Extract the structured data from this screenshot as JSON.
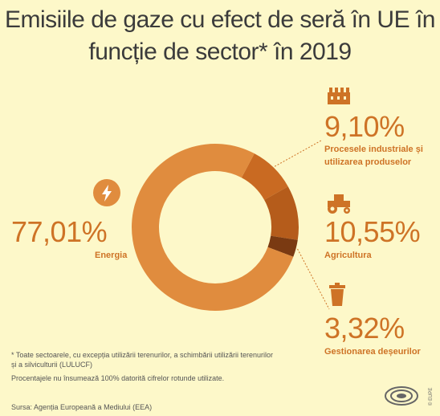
{
  "title_line1": "Emisiile de gaze cu efect de seră în UE în",
  "title_line2": "funcție de sector* în 2019",
  "chart_data": {
    "type": "pie",
    "title": "Emisiile de gaze cu efect de seră în UE în funcție de sector* în 2019",
    "series": [
      {
        "label": "Energia",
        "display": "77,01%",
        "value": 77.01,
        "color": "#e08c3e",
        "icon": "lightning-bolt-icon"
      },
      {
        "label": "Procesele industriale și utilizarea produselor",
        "display": "9,10%",
        "value": 9.1,
        "color": "#c96a22",
        "icon": "factory-icon"
      },
      {
        "label": "Agricultura",
        "display": "10,55%",
        "value": 10.55,
        "color": "#b55c1b",
        "icon": "tractor-icon"
      },
      {
        "label": "Gestionarea deșeurilor",
        "display": "3,32%",
        "value": 3.32,
        "color": "#7a3a12",
        "icon": "trash-bin-icon"
      }
    ]
  },
  "labels": {
    "energia_line1": "Energia",
    "industrial_line1": "Procesele industriale și",
    "industrial_line2": "utilizarea produselor",
    "agri_line1": "Agricultura",
    "waste_line1": "Gestionarea deșeurilor"
  },
  "footnote": {
    "line1": "* Toate sectoarele, cu excepția utilizării terenurilor, a schimbării utilizării terenurilor",
    "line2": "și a silviculturii (LULUCF)",
    "line3": "Procentajele nu însumează 100% datorită cifrelor rotunde utilizate.",
    "source": "Sursa: Agenția Europeană a Mediului (EEA)"
  },
  "logo_credit": "© EUPE"
}
